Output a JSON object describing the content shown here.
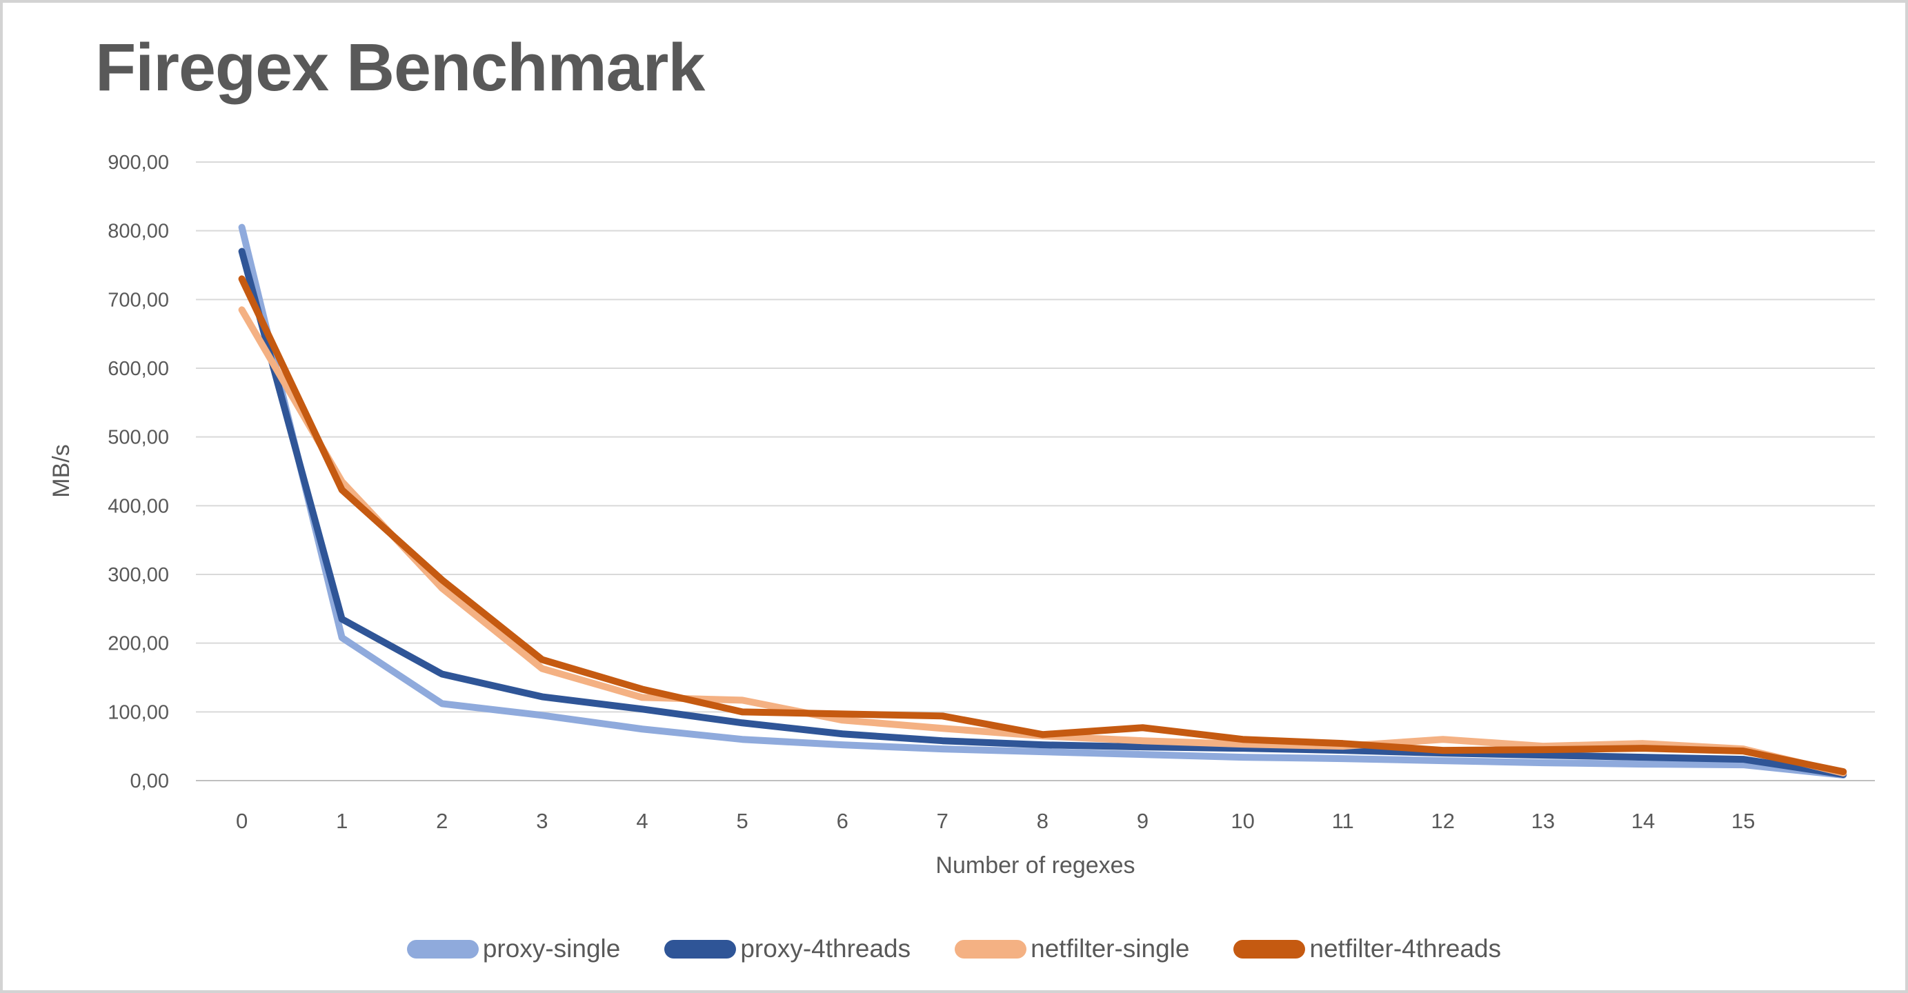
{
  "title": "Firegex Benchmark",
  "axes": {
    "x_title": "Number of regexes",
    "y_title": "MB/s",
    "y_tick_labels": [
      "0,00",
      "100,00",
      "200,00",
      "300,00",
      "400,00",
      "500,00",
      "600,00",
      "700,00",
      "800,00",
      "900,00"
    ],
    "x_tick_labels": [
      "0",
      "1",
      "2",
      "3",
      "4",
      "5",
      "6",
      "7",
      "8",
      "9",
      "10",
      "11",
      "12",
      "13",
      "14",
      "15"
    ]
  },
  "colors": {
    "title_text": "#595959",
    "axis_text": "#595959",
    "gridline": "#d9d9d9",
    "axis_line": "#bfbfbf",
    "frame_border": "#d3d3d3",
    "background": "#ffffff"
  },
  "chart_data": {
    "type": "line",
    "title": "Firegex Benchmark",
    "xlabel": "Number of regexes",
    "ylabel": "MB/s",
    "ylim": [
      0,
      900
    ],
    "ytick_step": 100,
    "grid": "horizontal",
    "legend_position": "bottom",
    "x": [
      0,
      1,
      2,
      3,
      4,
      5,
      6,
      7,
      8,
      9,
      10,
      11,
      12,
      13,
      14,
      15,
      16
    ],
    "x_note": "17th point (x=16) is plotted but unlabeled on the axis",
    "series": [
      {
        "name": "proxy-single",
        "color": "#8faadc",
        "values": [
          805,
          208,
          112,
          95,
          75,
          60,
          52,
          46,
          42,
          38,
          34,
          32,
          29,
          26,
          24,
          23,
          8
        ]
      },
      {
        "name": "proxy-4threads",
        "color": "#2f5597",
        "values": [
          770,
          235,
          155,
          122,
          104,
          84,
          68,
          58,
          52,
          49,
          47,
          44,
          40,
          37,
          34,
          31,
          9
        ]
      },
      {
        "name": "netfilter-single",
        "color": "#f4b183",
        "values": [
          685,
          435,
          280,
          163,
          121,
          117,
          88,
          76,
          65,
          58,
          53,
          50,
          60,
          50,
          54,
          46,
          11
        ]
      },
      {
        "name": "netfilter-4threads",
        "color": "#c55a11",
        "values": [
          730,
          423,
          292,
          176,
          133,
          100,
          97,
          94,
          67,
          77,
          60,
          54,
          44,
          45,
          47,
          43,
          13
        ]
      }
    ]
  }
}
